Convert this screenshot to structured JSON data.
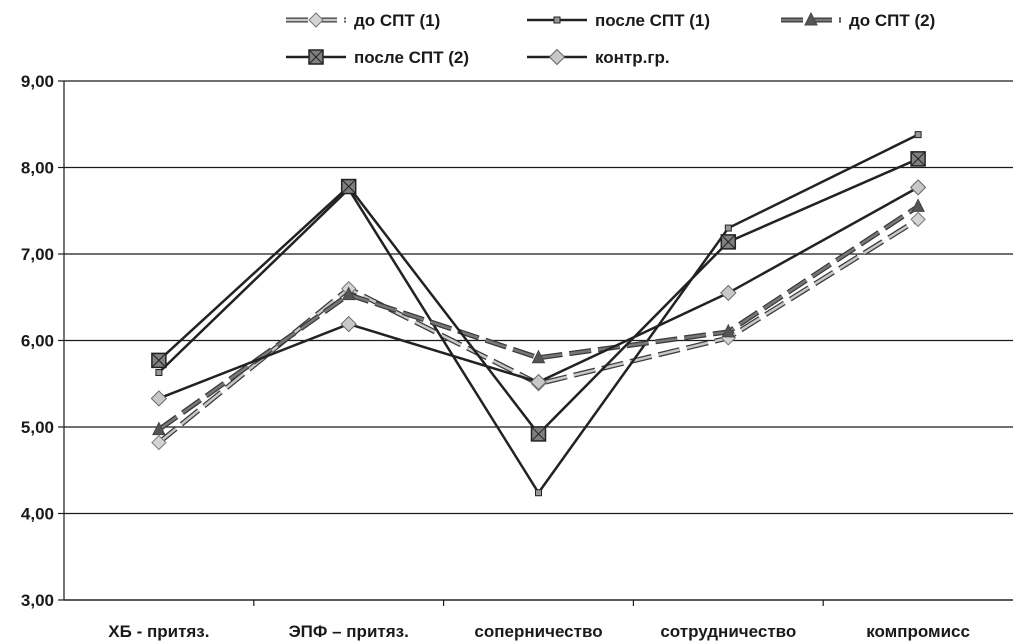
{
  "chart_data": {
    "type": "line",
    "categories": [
      "ХБ - притяз.",
      "ЭПФ – притяз.",
      "соперничество",
      "сотрудничество",
      "компромисс"
    ],
    "y_ticks": [
      "3,00",
      "4,00",
      "5,00",
      "6,00",
      "7,00",
      "8,00",
      "9,00"
    ],
    "ylim": [
      3,
      9
    ],
    "grid": true,
    "legend_position": "top",
    "series": [
      {
        "name": "до СПТ (1)",
        "values": [
          4.82,
          6.6,
          5.5,
          6.03,
          7.4
        ],
        "color": "#c8c8c8",
        "dash": true,
        "marker": "diamond-small"
      },
      {
        "name": "после СПТ (1)",
        "values": [
          5.63,
          7.75,
          4.24,
          7.3,
          8.38
        ],
        "color": "#222222",
        "dash": false,
        "marker": "small-square"
      },
      {
        "name": "до СПТ (2)",
        "values": [
          4.97,
          6.53,
          5.8,
          6.1,
          7.55
        ],
        "color": "#777777",
        "dash": true,
        "marker": "triangle"
      },
      {
        "name": "после СПТ (2)",
        "values": [
          5.77,
          7.78,
          4.92,
          7.14,
          8.1
        ],
        "color": "#222222",
        "dash": false,
        "marker": "square"
      },
      {
        "name": "контр.гр.",
        "values": [
          5.33,
          6.19,
          5.52,
          6.55,
          7.77
        ],
        "color": "#222222",
        "dash": false,
        "marker": "diamond"
      }
    ]
  }
}
